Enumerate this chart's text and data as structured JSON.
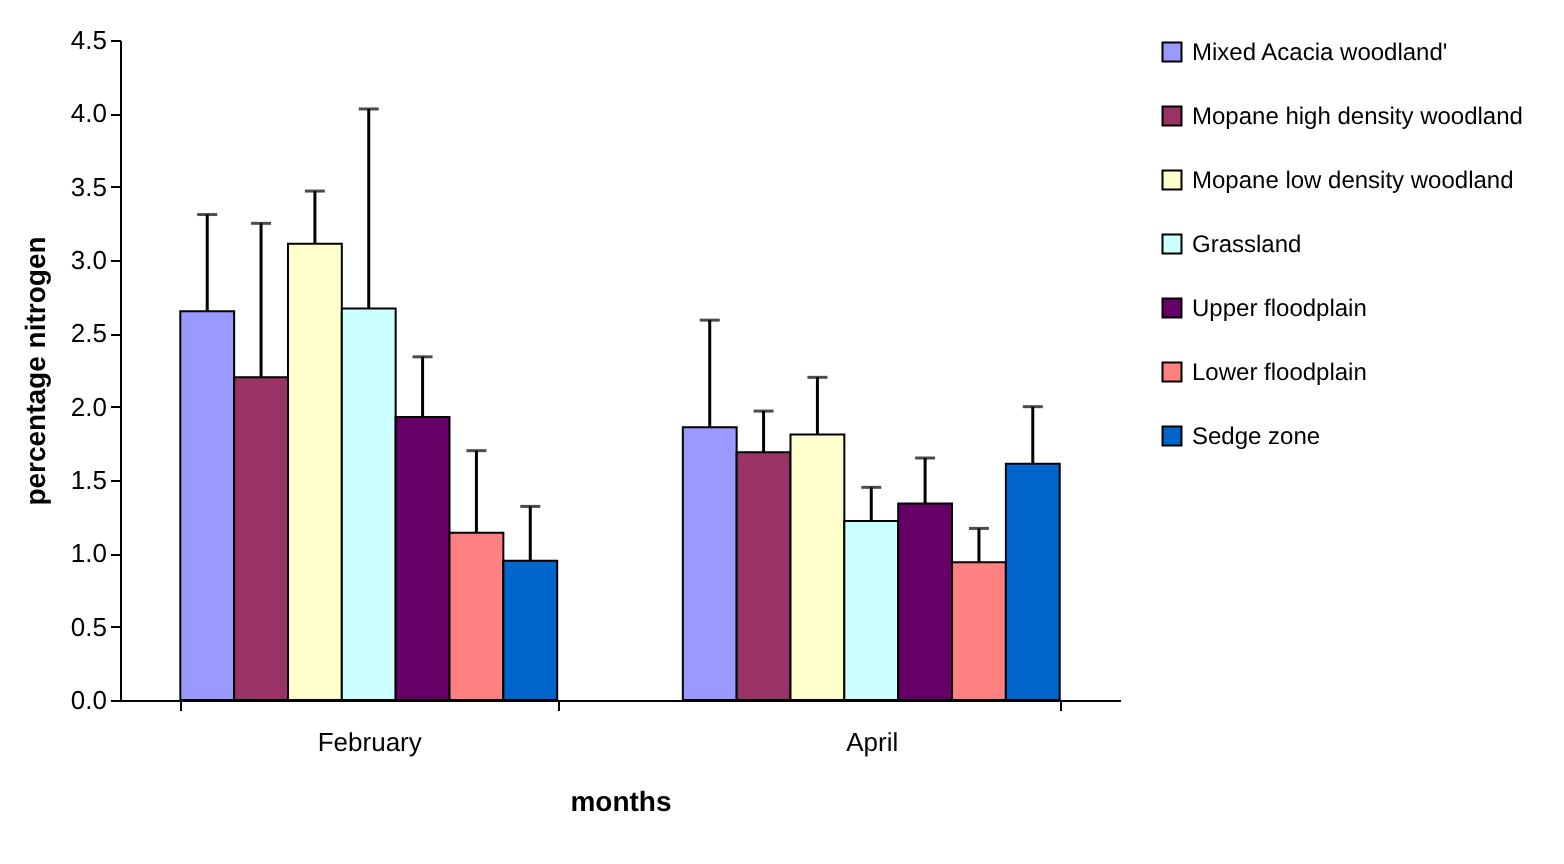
{
  "chart_data": {
    "type": "bar",
    "xlabel": "months",
    "ylabel": "percentage nitrogen",
    "categories": [
      "February",
      "April"
    ],
    "series": [
      {
        "name": "Mixed Acacia woodland'",
        "color": "#9999ff",
        "values": [
          2.65,
          1.86
        ],
        "errors": [
          [
            2.65,
            3.31
          ],
          [
            1.86,
            2.59
          ]
        ]
      },
      {
        "name": "Mopane high density woodland",
        "color": "#993366",
        "values": [
          2.2,
          1.69
        ],
        "errors": [
          [
            2.2,
            3.25
          ],
          [
            1.69,
            1.97
          ]
        ]
      },
      {
        "name": "Mopane low density woodland",
        "color": "#ffffcc",
        "values": [
          3.11,
          1.81
        ],
        "errors": [
          [
            3.11,
            3.47
          ],
          [
            1.81,
            2.2
          ]
        ]
      },
      {
        "name": "Grassland",
        "color": "#ccffff",
        "values": [
          2.67,
          1.22
        ],
        "errors": [
          [
            2.67,
            4.03
          ],
          [
            1.22,
            1.45
          ]
        ]
      },
      {
        "name": "Upper floodplain",
        "color": "#660066",
        "values": [
          1.93,
          1.34
        ],
        "errors": [
          [
            1.93,
            2.34
          ],
          [
            1.34,
            1.65
          ]
        ]
      },
      {
        "name": "Lower floodplain",
        "color": "#ff8080",
        "values": [
          1.14,
          0.94
        ],
        "errors": [
          [
            1.14,
            1.7
          ],
          [
            0.94,
            1.17
          ]
        ]
      },
      {
        "name": "Sedge zone",
        "color": "#0066cc",
        "values": [
          0.95,
          1.61
        ],
        "errors": [
          [
            0.95,
            1.32
          ],
          [
            1.61,
            2.0
          ]
        ]
      }
    ],
    "ylim": [
      0,
      4.5
    ],
    "yticks": [
      {
        "value": 0,
        "label": "0.0"
      },
      {
        "value": 0.5,
        "label": "0.5"
      },
      {
        "value": 1,
        "label": "1.0"
      },
      {
        "value": 1.5,
        "label": "1.5"
      },
      {
        "value": 2,
        "label": "2.0"
      },
      {
        "value": 2.5,
        "label": "2.5"
      },
      {
        "value": 3,
        "label": "3.0"
      },
      {
        "value": 3.5,
        "label": "3.5"
      },
      {
        "value": 4,
        "label": "4.0"
      },
      {
        "value": 4.5,
        "label": "4.5"
      }
    ],
    "grid": false,
    "legend": "right"
  }
}
